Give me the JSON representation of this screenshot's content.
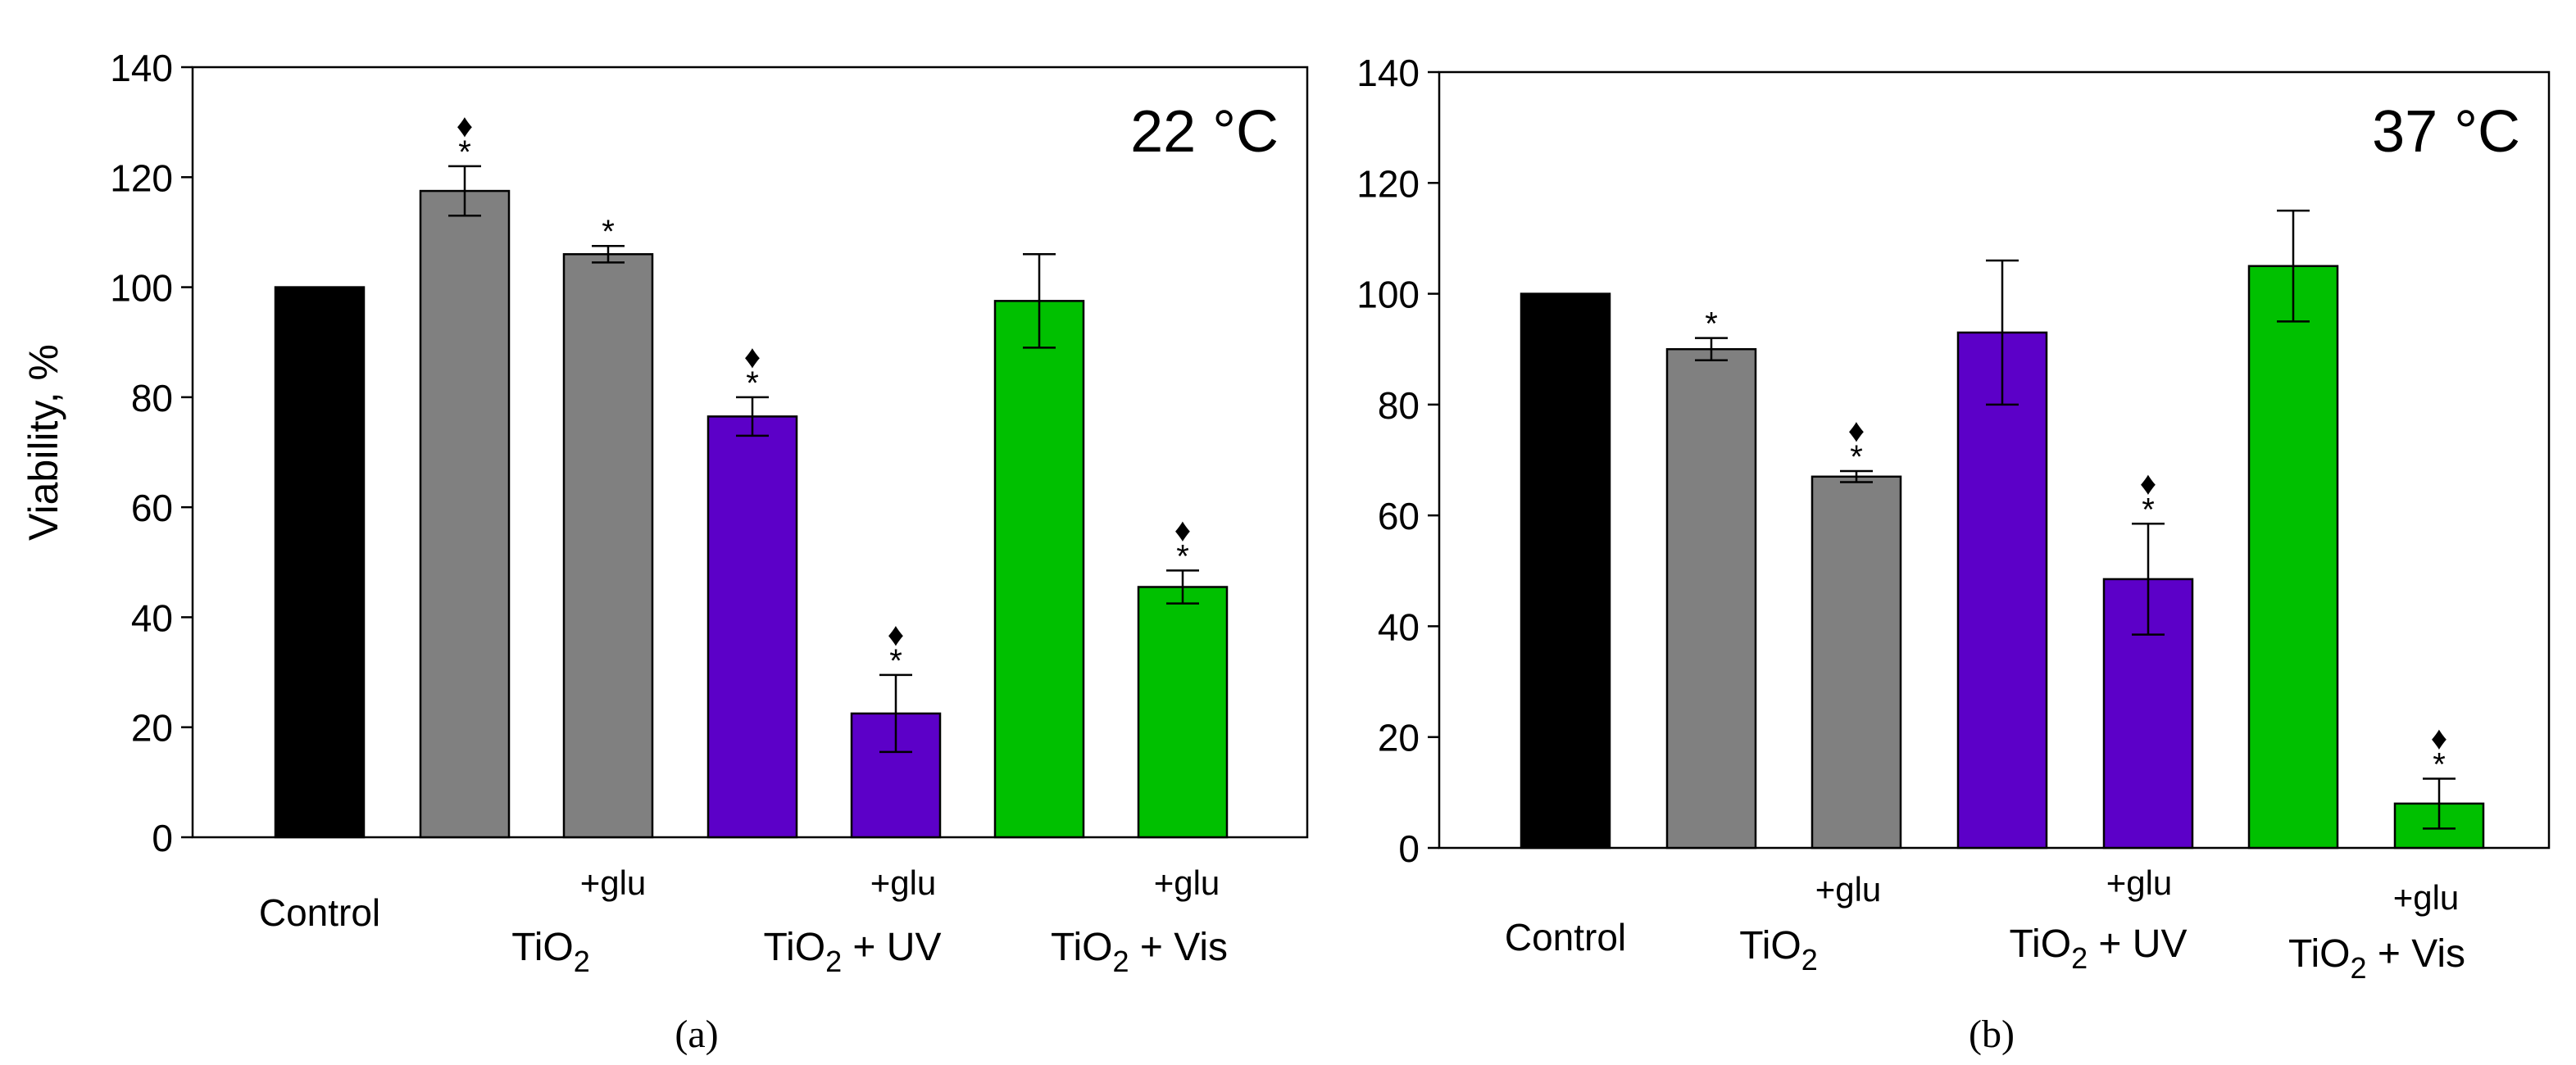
{
  "colors": {
    "black": "#000000",
    "gray": "#808080",
    "purple": "#5c00c8",
    "green": "#00c000"
  },
  "chart_data": [
    {
      "type": "bar",
      "panel_label": "(a)",
      "temperature_label": "22 °C",
      "ylabel": "Viability, %",
      "ylim": [
        0,
        140
      ],
      "yticks": [
        "0",
        "20",
        "40",
        "60",
        "80",
        "100",
        "120",
        "140"
      ],
      "grid": false,
      "bars": [
        {
          "value": 100,
          "error": 0,
          "color": "black",
          "star": false,
          "diamond": false
        },
        {
          "value": 117.5,
          "error": 4.5,
          "color": "gray",
          "star": true,
          "diamond": true
        },
        {
          "value": 106,
          "error": 1.5,
          "color": "gray",
          "star": true,
          "diamond": false
        },
        {
          "value": 76.5,
          "error": 3.5,
          "color": "purple",
          "star": true,
          "diamond": true
        },
        {
          "value": 22.5,
          "error": 7,
          "color": "purple",
          "star": true,
          "diamond": true
        },
        {
          "value": 97.5,
          "error": 8.5,
          "color": "green",
          "star": false,
          "diamond": false
        },
        {
          "value": 45.5,
          "error": 3,
          "color": "green",
          "star": true,
          "diamond": true
        }
      ],
      "group_labels": {
        "control": "Control",
        "glu": "+glu",
        "tio2": "TiO",
        "tio2_uv_suffix": " + UV",
        "tio2_vis_suffix": " + Vis",
        "subscript": "2"
      },
      "star_symbol": "*",
      "diamond_symbol": "♦"
    },
    {
      "type": "bar",
      "panel_label": "(b)",
      "temperature_label": "37 °C",
      "ylabel": "",
      "ylim": [
        0,
        140
      ],
      "yticks": [
        "0",
        "20",
        "40",
        "60",
        "80",
        "100",
        "120",
        "140"
      ],
      "grid": false,
      "bars": [
        {
          "value": 100,
          "error": 0,
          "color": "black",
          "star": false,
          "diamond": false
        },
        {
          "value": 90,
          "error": 2,
          "color": "gray",
          "star": true,
          "diamond": false
        },
        {
          "value": 67,
          "error": 1,
          "color": "gray",
          "star": true,
          "diamond": true
        },
        {
          "value": 93,
          "error": 13,
          "color": "purple",
          "star": false,
          "diamond": false
        },
        {
          "value": 48.5,
          "error": 10,
          "color": "purple",
          "star": true,
          "diamond": true
        },
        {
          "value": 105,
          "error": 10,
          "color": "green",
          "star": false,
          "diamond": false
        },
        {
          "value": 8,
          "error": 4.5,
          "color": "green",
          "star": true,
          "diamond": true
        }
      ],
      "group_labels": {
        "control": "Control",
        "glu": "+glu",
        "tio2": "TiO",
        "tio2_uv_suffix": " + UV",
        "tio2_vis_suffix": " + Vis",
        "subscript": "2"
      },
      "star_symbol": "*",
      "diamond_symbol": "♦"
    }
  ]
}
